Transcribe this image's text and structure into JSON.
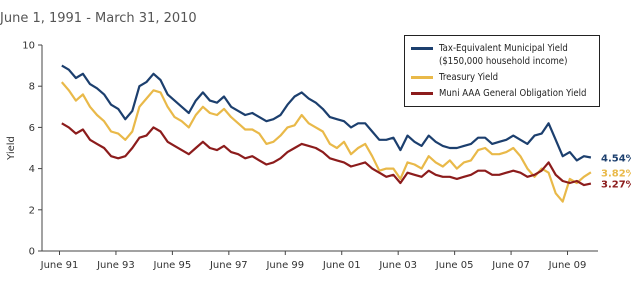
{
  "chart_data": {
    "type": "line",
    "title": "June 1, 1991 - March 31, 2010",
    "y_label": "Yield",
    "xlim": [
      1990.8,
      2010.5
    ],
    "ylim": [
      0,
      10
    ],
    "yticks": [
      0,
      2,
      4,
      6,
      8,
      10
    ],
    "xticks": [
      {
        "value": 1991.42,
        "label": "June 91"
      },
      {
        "value": 1993.42,
        "label": "June 93"
      },
      {
        "value": 1995.42,
        "label": "June 95"
      },
      {
        "value": 1997.42,
        "label": "June 97"
      },
      {
        "value": 1999.42,
        "label": "June 99"
      },
      {
        "value": 2001.42,
        "label": "June 01"
      },
      {
        "value": 2003.42,
        "label": "June 03"
      },
      {
        "value": 2005.42,
        "label": "June 05"
      },
      {
        "value": 2007.42,
        "label": "June 07"
      },
      {
        "value": 2009.42,
        "label": "June 09"
      }
    ],
    "x": [
      1991.5,
      1991.75,
      1992,
      1992.25,
      1992.5,
      1992.75,
      1993,
      1993.25,
      1993.5,
      1993.75,
      1994,
      1994.25,
      1994.5,
      1994.75,
      1995,
      1995.25,
      1995.5,
      1995.75,
      1996,
      1996.25,
      1996.5,
      1996.75,
      1997,
      1997.25,
      1997.5,
      1997.75,
      1998,
      1998.25,
      1998.5,
      1998.75,
      1999,
      1999.25,
      1999.5,
      1999.75,
      2000,
      2000.25,
      2000.5,
      2000.75,
      2001,
      2001.25,
      2001.5,
      2001.75,
      2002,
      2002.25,
      2002.5,
      2002.75,
      2003,
      2003.25,
      2003.5,
      2003.75,
      2004,
      2004.25,
      2004.5,
      2004.75,
      2005,
      2005.25,
      2005.5,
      2005.75,
      2006,
      2006.25,
      2006.5,
      2006.75,
      2007,
      2007.25,
      2007.5,
      2007.75,
      2008,
      2008.25,
      2008.5,
      2008.75,
      2009,
      2009.25,
      2009.5,
      2009.75,
      2010,
      2010.25
    ],
    "legend": "upper right",
    "series": [
      {
        "name": "Tax-Equivalent Municipal Yield ($150,000 household income)",
        "color": "#1c3f6e",
        "last_label": "4.54%",
        "values": [
          9.0,
          8.8,
          8.4,
          8.6,
          8.1,
          7.9,
          7.6,
          7.1,
          6.9,
          6.4,
          6.8,
          8.0,
          8.2,
          8.6,
          8.3,
          7.6,
          7.3,
          7.0,
          6.7,
          7.3,
          7.7,
          7.3,
          7.2,
          7.5,
          7.0,
          6.8,
          6.6,
          6.7,
          6.5,
          6.3,
          6.4,
          6.6,
          7.1,
          7.5,
          7.7,
          7.4,
          7.2,
          6.9,
          6.5,
          6.4,
          6.3,
          6.0,
          6.2,
          6.2,
          5.8,
          5.4,
          5.4,
          5.5,
          4.9,
          5.6,
          5.3,
          5.1,
          5.6,
          5.3,
          5.1,
          5.0,
          5.0,
          5.1,
          5.2,
          5.5,
          5.5,
          5.2,
          5.3,
          5.4,
          5.6,
          5.4,
          5.2,
          5.6,
          5.7,
          6.2,
          5.4,
          4.6,
          4.8,
          4.4,
          4.6,
          4.54
        ]
      },
      {
        "name": "Treasury Yield",
        "color": "#e9b949",
        "last_label": "3.82%",
        "values": [
          8.2,
          7.8,
          7.3,
          7.6,
          7.0,
          6.6,
          6.3,
          5.8,
          5.7,
          5.4,
          5.8,
          7.0,
          7.4,
          7.8,
          7.7,
          7.0,
          6.5,
          6.3,
          6.0,
          6.6,
          7.0,
          6.7,
          6.6,
          6.9,
          6.5,
          6.2,
          5.9,
          5.9,
          5.7,
          5.2,
          5.3,
          5.6,
          6.0,
          6.1,
          6.6,
          6.2,
          6.0,
          5.8,
          5.2,
          5.0,
          5.3,
          4.7,
          5.0,
          5.2,
          4.6,
          3.9,
          4.0,
          4.0,
          3.5,
          4.3,
          4.2,
          4.0,
          4.6,
          4.3,
          4.1,
          4.4,
          4.0,
          4.3,
          4.4,
          4.9,
          5.0,
          4.7,
          4.7,
          4.8,
          5.0,
          4.6,
          4.0,
          3.6,
          4.0,
          3.8,
          2.8,
          2.4,
          3.5,
          3.3,
          3.6,
          3.82
        ]
      },
      {
        "name": "Muni AAA General Obligation Yield",
        "color": "#8c1c1c",
        "last_label": "3.27%",
        "values": [
          6.2,
          6.0,
          5.7,
          5.9,
          5.4,
          5.2,
          5.0,
          4.6,
          4.5,
          4.6,
          5.0,
          5.5,
          5.6,
          6.0,
          5.8,
          5.3,
          5.1,
          4.9,
          4.7,
          5.0,
          5.3,
          5.0,
          4.9,
          5.1,
          4.8,
          4.7,
          4.5,
          4.6,
          4.4,
          4.2,
          4.3,
          4.5,
          4.8,
          5.0,
          5.2,
          5.1,
          5.0,
          4.8,
          4.5,
          4.4,
          4.3,
          4.1,
          4.2,
          4.3,
          4.0,
          3.8,
          3.6,
          3.7,
          3.3,
          3.8,
          3.7,
          3.6,
          3.9,
          3.7,
          3.6,
          3.6,
          3.5,
          3.6,
          3.7,
          3.9,
          3.9,
          3.7,
          3.7,
          3.8,
          3.9,
          3.8,
          3.6,
          3.7,
          3.9,
          4.3,
          3.7,
          3.4,
          3.3,
          3.4,
          3.2,
          3.27
        ]
      }
    ]
  }
}
